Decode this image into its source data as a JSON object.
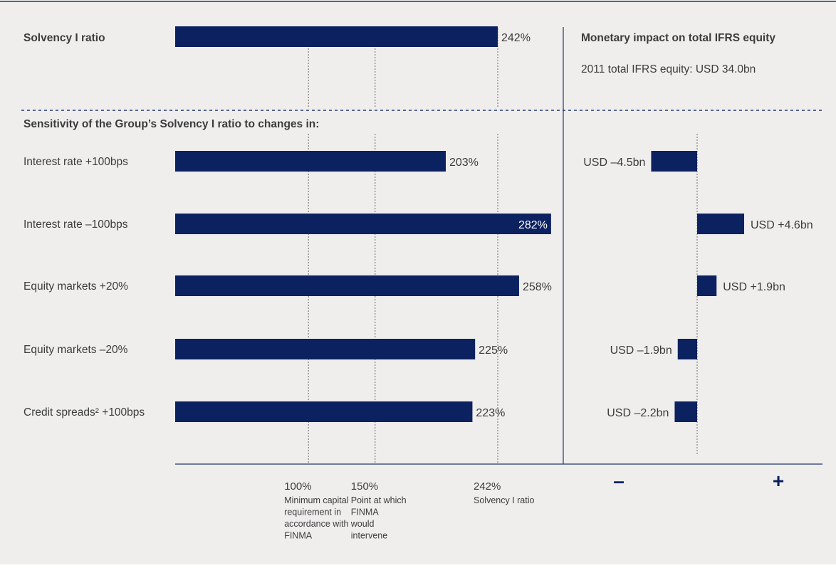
{
  "colors": {
    "background": "#efeeed",
    "bar": "#0b2160",
    "text": "#3c3c3c",
    "rule": "#22376e",
    "guide": "#6c6c6c"
  },
  "chart_data": [
    {
      "type": "bar",
      "orientation": "horizontal",
      "title": "Solvency I ratio",
      "categories": [
        ""
      ],
      "values": [
        242
      ],
      "value_labels": [
        "242%"
      ],
      "unit": "%"
    },
    {
      "type": "bar",
      "orientation": "horizontal",
      "title": "Sensitivity of the Group’s Solvency I ratio to changes in:",
      "categories": [
        "Interest rate +100bps",
        "Interest rate –100bps",
        "Equity markets +20%",
        "Equity markets –20%",
        "Credit spreads² +100bps"
      ],
      "values": [
        203,
        282,
        258,
        225,
        223
      ],
      "value_labels": [
        "203%",
        "282%",
        "258%",
        "225%",
        "223%"
      ],
      "unit": "%",
      "reference_lines": [
        {
          "value": 100,
          "label": "100%",
          "description": [
            "Minimum capital",
            "requirement in",
            "accordance with",
            "FINMA"
          ]
        },
        {
          "value": 150,
          "label": "150%",
          "description": [
            "Point at which",
            "FINMA",
            "would",
            "intervene"
          ]
        },
        {
          "value": 242,
          "label": "242%",
          "description": [
            "Solvency I ratio"
          ]
        }
      ]
    },
    {
      "type": "bar",
      "orientation": "horizontal",
      "title": "Monetary impact on total IFRS equity",
      "subtitle": "2011 total IFRS equity: USD 34.0bn",
      "categories": [
        "Interest rate +100bps",
        "Interest rate –100bps",
        "Equity markets +20%",
        "Equity markets –20%",
        "Credit spreads² +100bps"
      ],
      "values": [
        -4.5,
        4.6,
        1.9,
        -1.9,
        -2.2
      ],
      "value_labels": [
        "USD –4.5bn",
        "USD +4.6bn",
        "USD +1.9bn",
        "USD –1.9bn",
        "USD –2.2bn"
      ],
      "unit": "USD bn",
      "axis_labels": {
        "negative": "–",
        "positive": "+"
      }
    }
  ]
}
